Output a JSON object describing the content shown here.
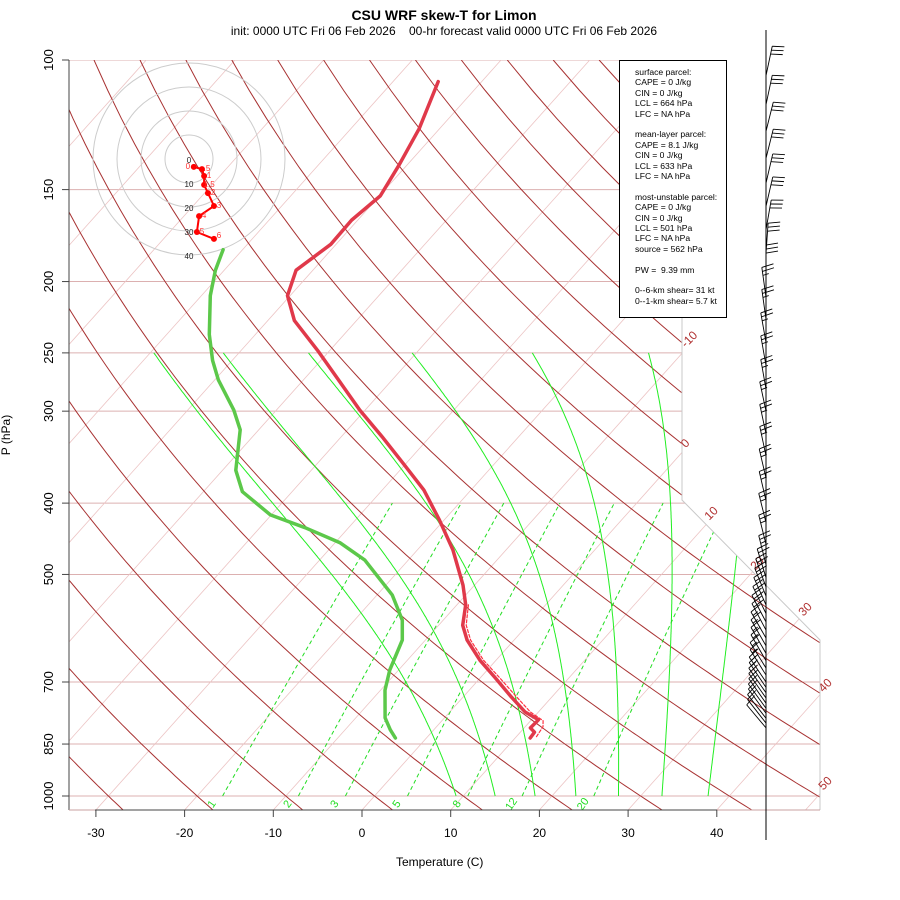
{
  "title": "CSU WRF skew-T for Limon",
  "subtitle": "init: 0000 UTC Fri 06 Feb 2026    00-hr forecast valid 0000 UTC Fri 06 Feb 2026",
  "info_box": {
    "surface": [
      "surface parcel:",
      "CAPE = 0 J/kg",
      "CIN = 0 J/kg",
      "LCL = 664 hPa",
      "LFC = NA hPa"
    ],
    "mean_layer": [
      "mean-layer parcel:",
      "CAPE = 8.1 J/kg",
      "CIN = 0 J/kg",
      "LCL = 633 hPa",
      "LFC = NA hPa"
    ],
    "most_unstable": [
      "most-unstable parcel:",
      "CAPE = 0 J/kg",
      "CIN = 0 J/kg",
      "LCL = 501 hPa",
      "LFC = NA hPa",
      "source = 562 hPa"
    ],
    "pw": "PW =  9.39 mm",
    "shear": [
      "0--6-km shear= 31 kt",
      "0--1-km shear= 5.7 kt"
    ]
  },
  "chart_data": {
    "type": "line",
    "subtype": "skew-T log-p",
    "xlabel": "Temperature (C)",
    "ylabel": "P (hPa)",
    "xlim": [
      -33,
      52
    ],
    "ylim": [
      1050,
      100
    ],
    "x_ticks": [
      -30,
      -20,
      -10,
      0,
      10,
      20,
      30,
      40
    ],
    "y_ticks": [
      100,
      150,
      200,
      250,
      300,
      400,
      500,
      700,
      850,
      1000
    ],
    "isotherm_labels": [
      -10,
      0,
      10,
      20,
      30,
      40,
      50
    ],
    "mixing_ratio_labels": [
      1,
      2,
      3,
      5,
      8,
      12,
      20
    ],
    "temperature": {
      "name": "temperature",
      "color": "#e0394a",
      "p": [
        107,
        124,
        139,
        153,
        165,
        178,
        193,
        209,
        226,
        248,
        277,
        299,
        325,
        354,
        384,
        422,
        463,
        517,
        550,
        586,
        614,
        654,
        691,
        731,
        769,
        788,
        808,
        819,
        834
      ],
      "T": [
        -64.9,
        -62.3,
        -60.9,
        -59.9,
        -60.7,
        -60.6,
        -61.9,
        -60.3,
        -57.0,
        -51.4,
        -45.0,
        -40.6,
        -35.4,
        -30.2,
        -25.3,
        -20.5,
        -16.0,
        -11.3,
        -9.0,
        -7.3,
        -5.3,
        -1.8,
        1.7,
        5.2,
        8.5,
        10.8,
        10.7,
        11.6,
        11.7
      ]
    },
    "dewpoint": {
      "name": "dewpoint",
      "color": "#5cc84a",
      "p": [
        181,
        193,
        209,
        236,
        256,
        272,
        299,
        318,
        361,
        386,
        415,
        432,
        453,
        478,
        533,
        577,
        614,
        674,
        718,
        783,
        813,
        834
      ],
      "T": [
        -72.2,
        -71.0,
        -69.0,
        -65.2,
        -62.2,
        -59.6,
        -54.8,
        -52.1,
        -48.5,
        -45.6,
        -40.1,
        -34.9,
        -29.4,
        -24.9,
        -18.3,
        -14.6,
        -12.6,
        -11.0,
        -9.5,
        -6.7,
        -4.9,
        -3.5
      ]
    },
    "parcel": {
      "name": "parcel",
      "color": "#ff3040",
      "p": [
        550,
        586,
        614,
        654,
        691,
        731,
        769,
        790,
        805,
        834
      ],
      "T": [
        -8.7,
        -6.9,
        -4.9,
        -1.4,
        2.2,
        5.8,
        9.1,
        11.4,
        12.0,
        12.3
      ]
    },
    "winds": {
      "p": [
        105,
        115,
        125,
        136,
        147,
        158,
        170,
        183,
        196,
        210,
        225,
        242,
        260,
        280,
        300,
        322,
        345,
        370,
        397,
        425,
        455,
        485,
        505,
        520,
        535,
        550,
        565,
        580,
        595,
        610,
        625,
        640,
        655,
        670,
        685,
        700,
        712,
        724,
        736,
        748,
        760,
        772,
        784,
        796,
        808
      ],
      "dir": [
        12,
        12,
        14,
        14,
        13,
        13,
        10,
        4,
        0,
        352,
        352,
        350,
        350,
        350,
        348,
        348,
        348,
        347,
        347,
        346,
        346,
        346,
        343,
        340,
        338,
        336,
        334,
        332,
        332,
        330,
        330,
        330,
        330,
        328,
        328,
        326,
        326,
        325,
        325,
        325,
        324,
        324,
        322,
        322,
        320
      ],
      "spd": [
        30,
        30,
        30,
        30,
        30,
        30,
        30,
        30,
        30,
        25,
        25,
        25,
        25,
        25,
        25,
        25,
        25,
        25,
        25,
        25,
        25,
        25,
        20,
        20,
        20,
        20,
        20,
        20,
        20,
        15,
        15,
        15,
        15,
        15,
        15,
        15,
        15,
        10,
        10,
        10,
        10,
        10,
        10,
        10,
        10
      ]
    },
    "hodograph": {
      "ring_labels": [
        "0",
        "10",
        "20",
        "30",
        "40"
      ],
      "u": [
        2.0,
        5.4,
        6.3,
        6.3,
        7.9,
        10.4,
        4.2,
        3.3,
        10.4
      ],
      "v": [
        -3.3,
        -4.2,
        -7.1,
        -10.8,
        -14.2,
        -19.6,
        -23.8,
        -30.4,
        -33.3
      ],
      "labels": [
        "0",
        ".5",
        "1",
        "1.5",
        "2",
        "3",
        "4",
        "5",
        "6"
      ]
    }
  }
}
